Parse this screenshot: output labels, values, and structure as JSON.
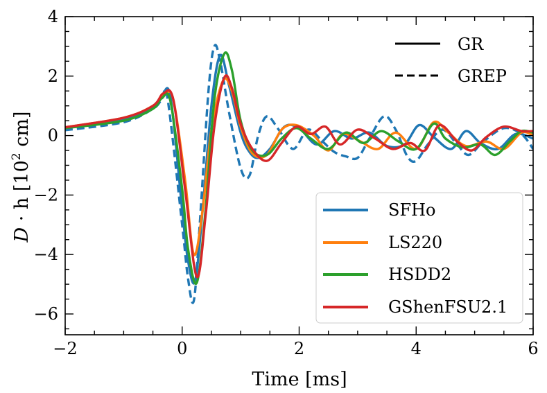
{
  "chart_data": {
    "type": "line",
    "xlabel": "Time [ms]",
    "ylabel_prefix": "D · h [10",
    "ylabel_exp": "2",
    "ylabel_suffix": " cm]",
    "xlim": [
      -2,
      6
    ],
    "ylim": [
      -6.7,
      4
    ],
    "xticks": [
      -2,
      0,
      2,
      4,
      6
    ],
    "xtick_labels": [
      "−2",
      "0",
      "2",
      "4",
      "6"
    ],
    "yticks": [
      -6,
      -4,
      -2,
      0,
      2,
      4
    ],
    "ytick_labels": [
      "−6",
      "−4",
      "−2",
      "0",
      "2",
      "4"
    ],
    "grid": false,
    "style_legend": {
      "placement": "top-right",
      "entries": [
        {
          "label": "GR",
          "dash": "solid"
        },
        {
          "label": "GREP",
          "dash": "dashed"
        }
      ]
    },
    "color_legend": {
      "placement": "lower-right",
      "entries": [
        {
          "label": "SFHo",
          "color": "#1f77b4"
        },
        {
          "label": "LS220",
          "color": "#ff7f0e"
        },
        {
          "label": "HSDD2",
          "color": "#2ca02c"
        },
        {
          "label": "GShenFSU2.1",
          "color": "#d62728"
        }
      ]
    },
    "series": [
      {
        "name": "SFHo GREP",
        "color": "#1f77b4",
        "dash": "dashed",
        "x": [
          -2.0,
          -1.0,
          -0.5,
          -0.35,
          -0.25,
          0.0,
          0.1,
          0.2,
          0.3,
          0.45,
          0.55,
          0.65,
          0.8,
          1.0,
          1.15,
          1.3,
          1.45,
          1.65,
          1.9,
          2.15,
          2.4,
          2.6,
          2.8,
          3.0,
          3.2,
          3.45,
          3.65,
          3.85,
          4.0,
          4.2,
          4.45,
          4.7,
          4.9,
          5.15,
          5.5,
          5.8,
          6.0
        ],
        "y": [
          0.18,
          0.45,
          0.9,
          1.2,
          1.25,
          -3.0,
          -4.8,
          -5.55,
          -3.0,
          1.5,
          3.0,
          2.5,
          0.8,
          -1.1,
          -1.35,
          0.0,
          0.65,
          0.2,
          -0.45,
          0.2,
          -0.2,
          -0.55,
          -0.7,
          -0.75,
          -0.1,
          0.65,
          0.2,
          -0.7,
          -0.85,
          -0.3,
          0.2,
          -0.3,
          -0.65,
          -0.2,
          0.25,
          0.05,
          -0.45
        ]
      },
      {
        "name": "SFHo GR",
        "color": "#1f77b4",
        "dash": "solid",
        "x": [
          -2.0,
          -1.0,
          -0.5,
          -0.35,
          -0.2,
          0.0,
          0.1,
          0.22,
          0.35,
          0.5,
          0.65,
          0.8,
          1.0,
          1.15,
          1.3,
          1.5,
          1.75,
          2.0,
          2.3,
          2.6,
          2.9,
          3.2,
          3.5,
          3.8,
          4.05,
          4.3,
          4.6,
          4.85,
          5.1,
          5.4,
          5.7,
          6.0
        ],
        "y": [
          0.25,
          0.55,
          0.95,
          1.3,
          1.3,
          -2.5,
          -4.2,
          -4.9,
          -2.5,
          1.0,
          2.7,
          1.7,
          0.1,
          -0.55,
          -0.75,
          -0.45,
          0.3,
          0.25,
          -0.3,
          0.15,
          -0.1,
          0.1,
          -0.35,
          -0.3,
          0.35,
          -0.05,
          -0.45,
          0.15,
          -0.25,
          -0.45,
          0.05,
          -0.1
        ]
      },
      {
        "name": "LS220 GR",
        "color": "#ff7f0e",
        "dash": "solid",
        "x": [
          -2.0,
          -1.0,
          -0.5,
          -0.3,
          -0.15,
          0.05,
          0.2,
          0.35,
          0.5,
          0.7,
          0.85,
          1.0,
          1.2,
          1.45,
          1.7,
          1.95,
          2.25,
          2.5,
          2.75,
          3.05,
          3.35,
          3.65,
          4.0,
          4.3,
          4.55,
          4.85,
          5.2,
          5.5,
          5.8,
          6.0
        ],
        "y": [
          0.28,
          0.6,
          1.0,
          1.38,
          1.2,
          -1.5,
          -4.0,
          -2.5,
          0.2,
          1.85,
          1.5,
          0.3,
          -0.6,
          -0.65,
          0.2,
          0.35,
          0.0,
          -0.5,
          0.05,
          -0.2,
          -0.45,
          0.1,
          -0.45,
          0.45,
          0.1,
          -0.35,
          -0.2,
          -0.45,
          0.1,
          0.0
        ]
      },
      {
        "name": "HSDD2 GR",
        "color": "#2ca02c",
        "dash": "solid",
        "x": [
          -2.0,
          -1.0,
          -0.5,
          -0.35,
          -0.2,
          0.0,
          0.1,
          0.25,
          0.4,
          0.55,
          0.72,
          0.85,
          1.0,
          1.2,
          1.45,
          1.7,
          1.95,
          2.2,
          2.5,
          2.8,
          3.1,
          3.4,
          3.7,
          4.0,
          4.3,
          4.5,
          4.8,
          5.1,
          5.35,
          5.6,
          5.8,
          6.0
        ],
        "y": [
          0.25,
          0.5,
          0.9,
          1.25,
          1.15,
          -1.8,
          -3.8,
          -4.95,
          -2.5,
          1.2,
          2.75,
          2.2,
          0.5,
          -0.5,
          -0.65,
          -0.1,
          0.25,
          -0.1,
          -0.45,
          0.1,
          -0.25,
          0.15,
          -0.2,
          -0.45,
          0.4,
          -0.1,
          -0.4,
          -0.3,
          -0.65,
          -0.2,
          0.15,
          0.1
        ]
      },
      {
        "name": "GShenFSU2.1 GR",
        "color": "#d62728",
        "dash": "solid",
        "x": [
          -2.0,
          -1.0,
          -0.5,
          -0.32,
          -0.15,
          0.05,
          0.25,
          0.4,
          0.55,
          0.72,
          0.85,
          1.0,
          1.2,
          1.45,
          1.7,
          1.95,
          2.2,
          2.45,
          2.7,
          3.0,
          3.3,
          3.6,
          3.9,
          4.15,
          4.4,
          4.7,
          4.95,
          5.2,
          5.5,
          5.8,
          6.0
        ],
        "y": [
          0.28,
          0.6,
          1.0,
          1.42,
          1.2,
          -1.8,
          -4.75,
          -2.7,
          0.3,
          1.95,
          1.6,
          0.4,
          -0.45,
          -0.85,
          -0.25,
          0.3,
          0.05,
          0.3,
          -0.3,
          0.2,
          -0.1,
          -0.45,
          -0.25,
          -0.5,
          0.35,
          -0.2,
          -0.5,
          -0.05,
          0.3,
          0.15,
          0.15
        ]
      }
    ]
  }
}
